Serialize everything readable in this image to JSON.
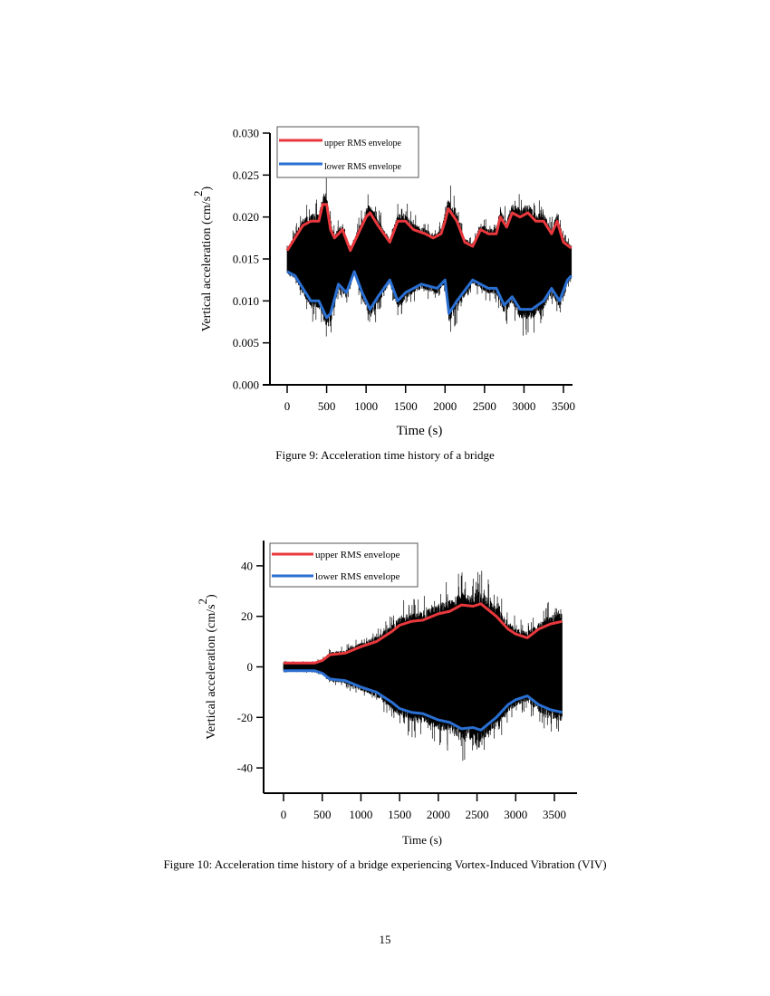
{
  "page_number": "15",
  "chart_data": [
    {
      "type": "line",
      "caption": "Figure 9: Acceleration time history of a bridge",
      "xlabel": "Time (s)",
      "ylabel": "Vertical acceleration (cm/s",
      "ylabel_sup": "2",
      "ylabel_end": ")",
      "xlim": [
        -200,
        3800
      ],
      "ylim": [
        0,
        0.03
      ],
      "xticks": [
        "0",
        "500",
        "1000",
        "1500",
        "2000",
        "2500",
        "3000",
        "3500"
      ],
      "yticks": [
        "0.000",
        "0.005",
        "0.010",
        "0.015",
        "0.020",
        "0.025",
        "0.030"
      ],
      "legend_position": "top-left",
      "grid": false,
      "colors": {
        "signal": "#000000",
        "upper": "#e8383d",
        "lower": "#2a6fd1"
      },
      "signal_center": 0.0148,
      "series": [
        {
          "name": "upper RMS envelope",
          "x": [
            0,
            100,
            200,
            300,
            400,
            450,
            500,
            550,
            600,
            700,
            800,
            900,
            1000,
            1050,
            1150,
            1300,
            1400,
            1500,
            1600,
            1750,
            1850,
            1950,
            2000,
            2040,
            2150,
            2250,
            2350,
            2450,
            2550,
            2650,
            2700,
            2780,
            2850,
            2950,
            3050,
            3150,
            3250,
            3350,
            3420,
            3500,
            3600
          ],
          "y": [
            0.016,
            0.0175,
            0.019,
            0.0195,
            0.0195,
            0.0215,
            0.0215,
            0.0185,
            0.0175,
            0.0185,
            0.016,
            0.018,
            0.02,
            0.0205,
            0.019,
            0.017,
            0.0195,
            0.0195,
            0.0185,
            0.018,
            0.0175,
            0.018,
            0.0195,
            0.021,
            0.0195,
            0.017,
            0.0165,
            0.0185,
            0.018,
            0.018,
            0.02,
            0.0188,
            0.0205,
            0.02,
            0.0205,
            0.0195,
            0.0195,
            0.018,
            0.0195,
            0.017,
            0.0163
          ]
        },
        {
          "name": "lower RMS envelope",
          "x": [
            0,
            100,
            200,
            300,
            400,
            500,
            550,
            650,
            750,
            850,
            950,
            1050,
            1150,
            1300,
            1400,
            1500,
            1700,
            1900,
            2000,
            2050,
            2150,
            2350,
            2450,
            2550,
            2650,
            2750,
            2850,
            2950,
            3100,
            3250,
            3350,
            3450,
            3550,
            3600
          ],
          "y": [
            0.0135,
            0.013,
            0.0115,
            0.01,
            0.01,
            0.008,
            0.0085,
            0.012,
            0.011,
            0.0135,
            0.011,
            0.009,
            0.0105,
            0.0125,
            0.01,
            0.011,
            0.012,
            0.0115,
            0.0125,
            0.0085,
            0.01,
            0.0125,
            0.012,
            0.0115,
            0.0115,
            0.0095,
            0.0105,
            0.009,
            0.009,
            0.01,
            0.0115,
            0.01,
            0.0125,
            0.013
          ]
        }
      ]
    },
    {
      "type": "line",
      "caption": "Figure 10: Acceleration time history of a bridge experiencing Vortex-Induced Vibration (VIV)",
      "xlabel": "Time (s)",
      "ylabel": "Vertical acceleration (cm/s",
      "ylabel_sup": "2",
      "ylabel_end": ")",
      "xlim": [
        -250,
        3800
      ],
      "ylim": [
        -50,
        50
      ],
      "xticks": [
        "0",
        "500",
        "1000",
        "1500",
        "2000",
        "2500",
        "3000",
        "3500"
      ],
      "yticks": [
        "-40",
        "-20",
        "0",
        "20",
        "40"
      ],
      "legend_position": "top-left",
      "grid": false,
      "colors": {
        "signal": "#000000",
        "upper": "#e8383d",
        "lower": "#2a6fd1"
      },
      "signal_center": 0,
      "series": [
        {
          "name": "upper RMS envelope",
          "x": [
            0,
            400,
            500,
            600,
            800,
            1000,
            1200,
            1400,
            1500,
            1650,
            1800,
            2000,
            2150,
            2300,
            2450,
            2550,
            2750,
            2900,
            3000,
            3150,
            3300,
            3450,
            3600
          ],
          "y": [
            1.5,
            1.5,
            2.5,
            4.8,
            5.5,
            8,
            10,
            14,
            16.5,
            18,
            18.5,
            21,
            22,
            24.5,
            24,
            25,
            20,
            15,
            13,
            11.5,
            15,
            17,
            18
          ]
        },
        {
          "name": "lower RMS envelope",
          "x": [
            0,
            400,
            500,
            600,
            800,
            1000,
            1200,
            1400,
            1500,
            1650,
            1800,
            2000,
            2150,
            2300,
            2450,
            2550,
            2750,
            2900,
            3000,
            3150,
            3300,
            3450,
            3600
          ],
          "y": [
            -1.5,
            -1.5,
            -2.5,
            -4.8,
            -5.5,
            -8,
            -10,
            -14,
            -16.5,
            -18,
            -18.5,
            -21,
            -22,
            -24.5,
            -24,
            -25,
            -20,
            -15,
            -13,
            -11.5,
            -15,
            -17,
            -18
          ]
        }
      ]
    }
  ]
}
